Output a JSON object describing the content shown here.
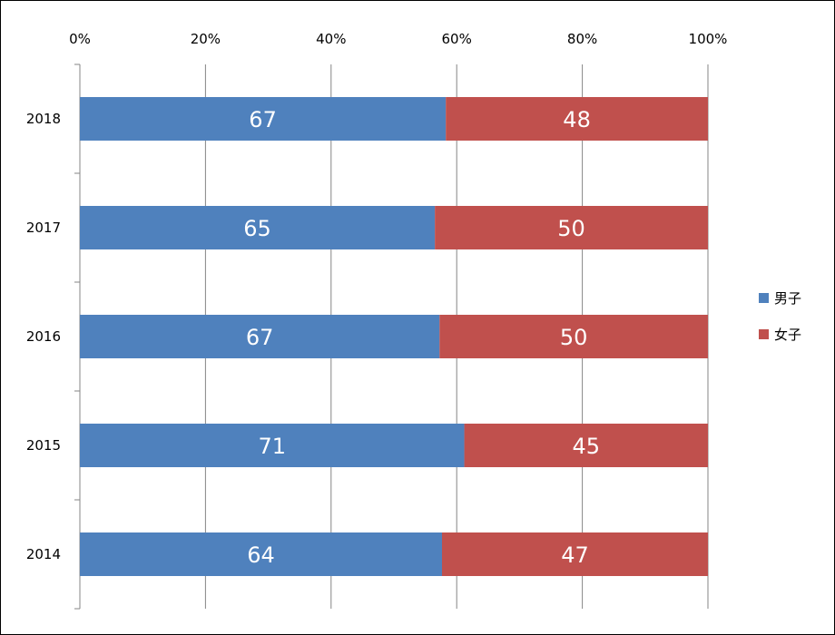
{
  "chart_data": {
    "type": "bar",
    "orientation": "horizontal",
    "stacking": "percent",
    "categories": [
      "2018",
      "2017",
      "2016",
      "2015",
      "2014"
    ],
    "series": [
      {
        "name": "男子",
        "color": "#4F81BD",
        "values": [
          67,
          65,
          67,
          71,
          64
        ]
      },
      {
        "name": "女子",
        "color": "#C0504D",
        "values": [
          48,
          50,
          50,
          45,
          47
        ]
      }
    ],
    "x_ticks": [
      "0%",
      "20%",
      "40%",
      "60%",
      "80%",
      "100%"
    ],
    "xlim": [
      0,
      100
    ],
    "x_axis_position": "top",
    "grid": true,
    "legend_position": "right",
    "title": "",
    "xlabel": "",
    "ylabel": ""
  }
}
